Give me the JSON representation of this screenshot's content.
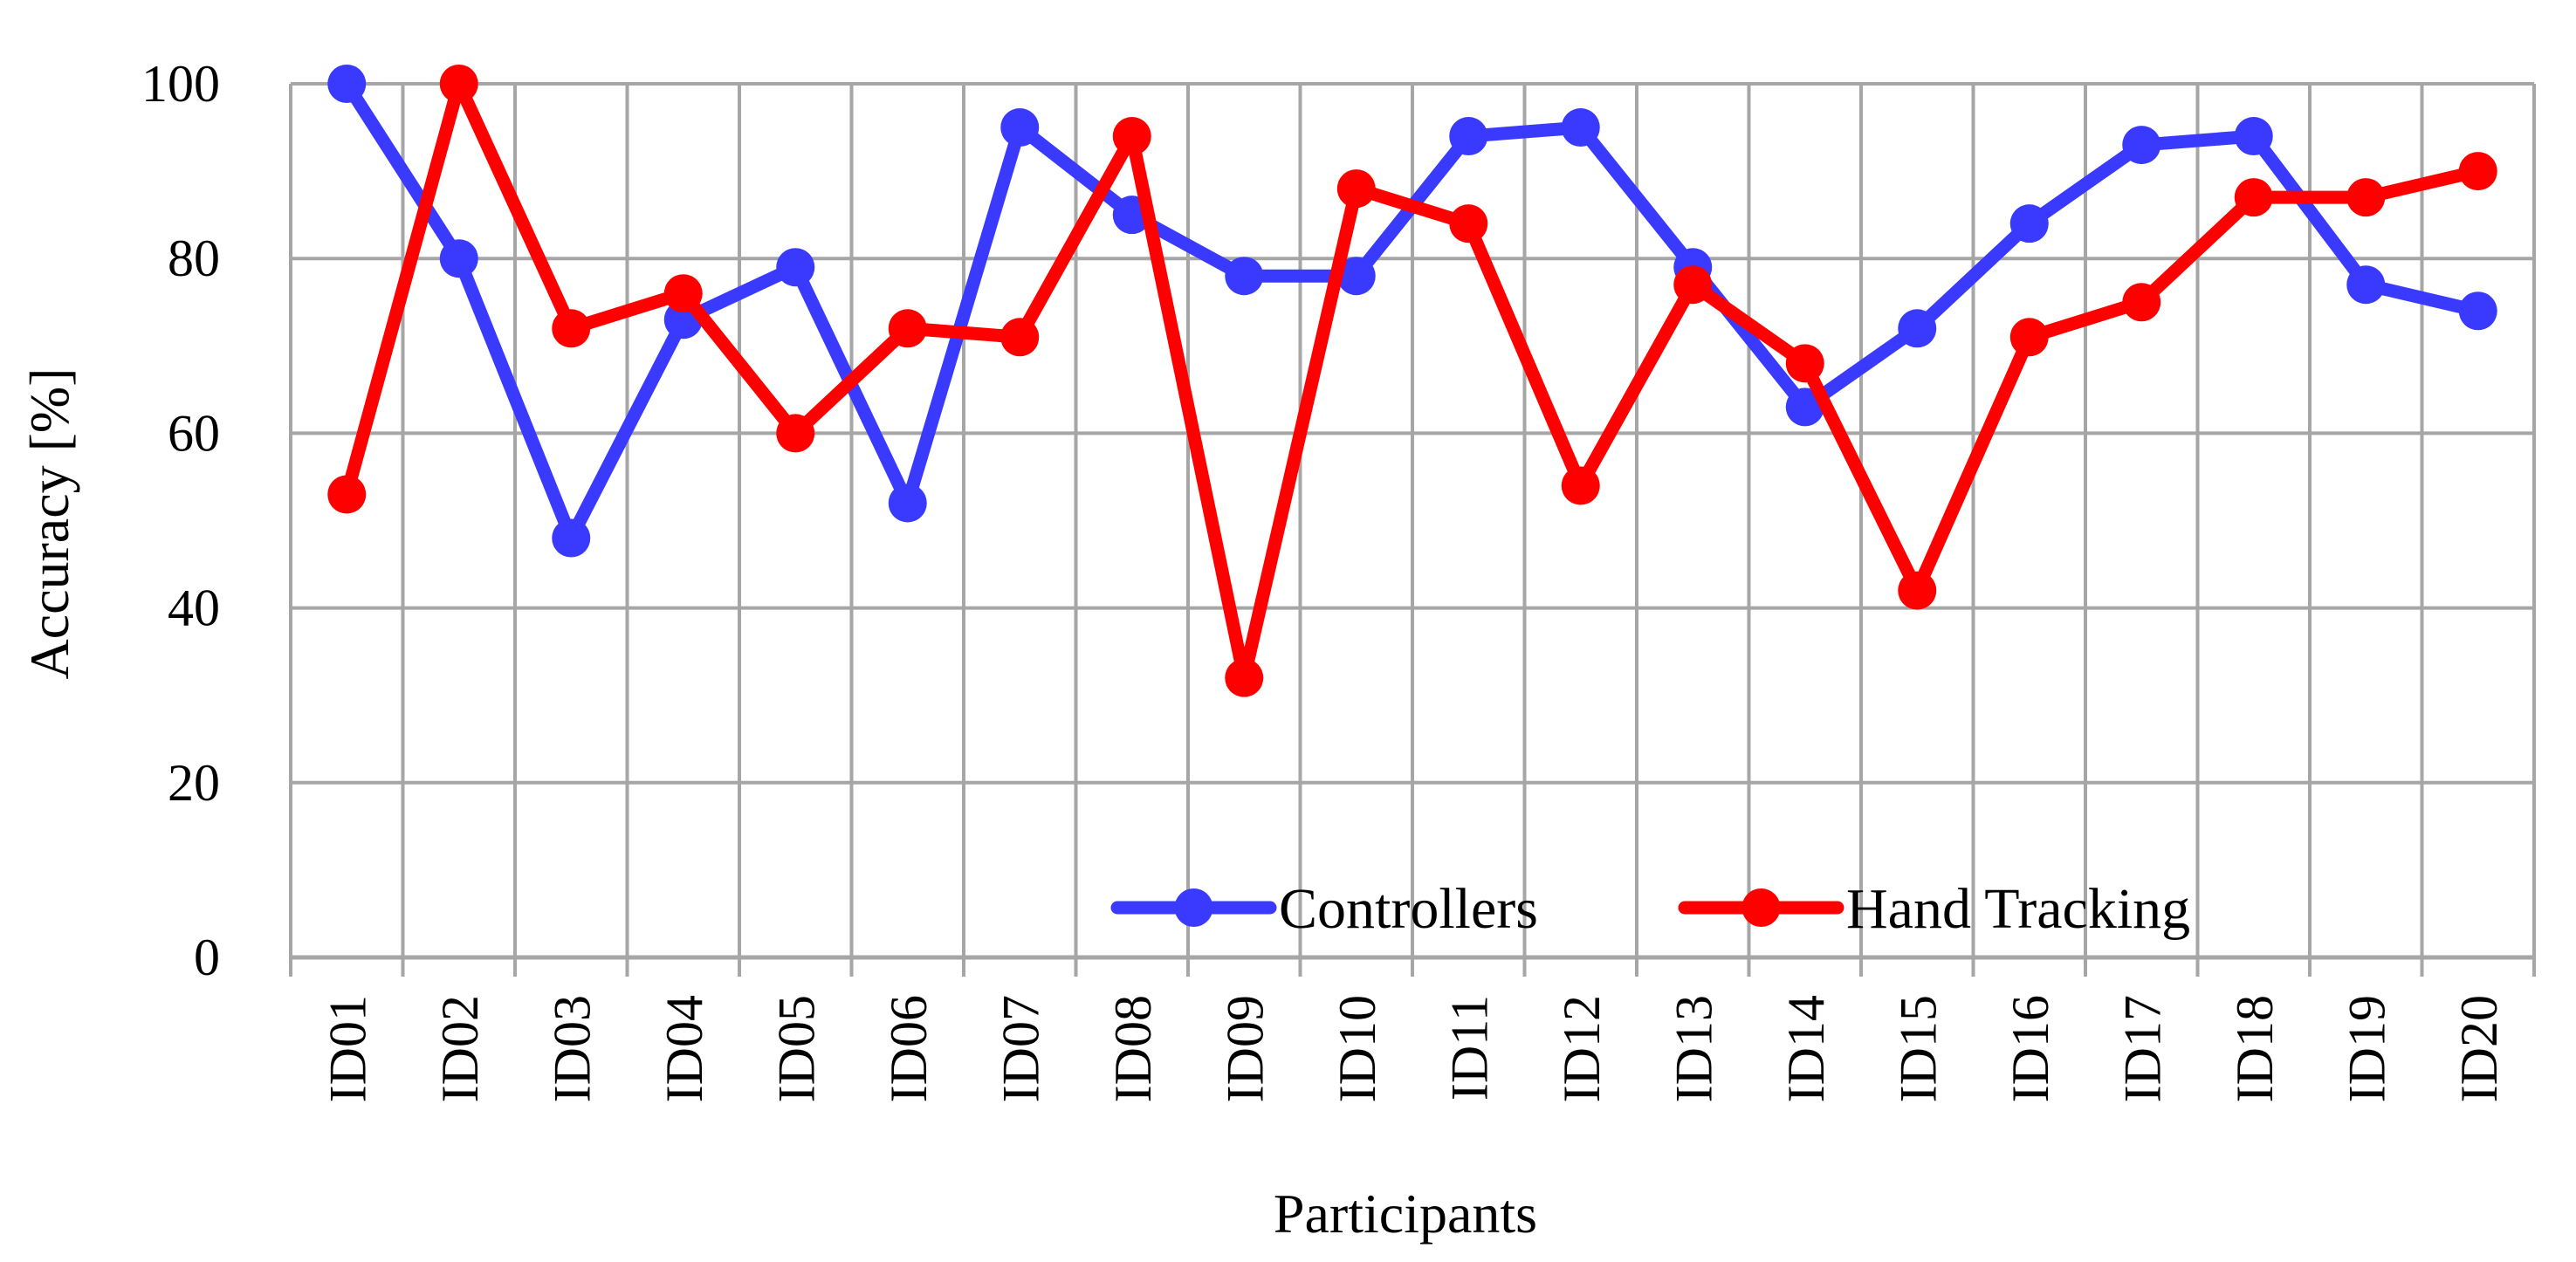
{
  "chart_data": {
    "type": "line",
    "title": "",
    "xlabel": "Participants",
    "ylabel": "Accuracy [%]",
    "ylim": [
      0,
      100
    ],
    "yticks": [
      0,
      20,
      40,
      60,
      80,
      100
    ],
    "grid": true,
    "legend_position": "bottom-right",
    "categories": [
      "ID01",
      "ID02",
      "ID03",
      "ID04",
      "ID05",
      "ID06",
      "ID07",
      "ID08",
      "ID09",
      "ID10",
      "ID11",
      "ID12",
      "ID13",
      "ID14",
      "ID15",
      "ID16",
      "ID17",
      "ID18",
      "ID19",
      "ID20"
    ],
    "series": [
      {
        "name": "Controllers",
        "color": "#3a3aff",
        "values": [
          100,
          80,
          48,
          73,
          79,
          52,
          95,
          85,
          78,
          78,
          94,
          95,
          79,
          63,
          72,
          84,
          93,
          94,
          77,
          74
        ]
      },
      {
        "name": "Hand Tracking",
        "color": "#ff0000",
        "values": [
          53,
          100,
          72,
          76,
          60,
          72,
          71,
          94,
          32,
          88,
          84,
          54,
          77,
          68,
          42,
          71,
          75,
          87,
          87,
          90
        ]
      }
    ]
  }
}
